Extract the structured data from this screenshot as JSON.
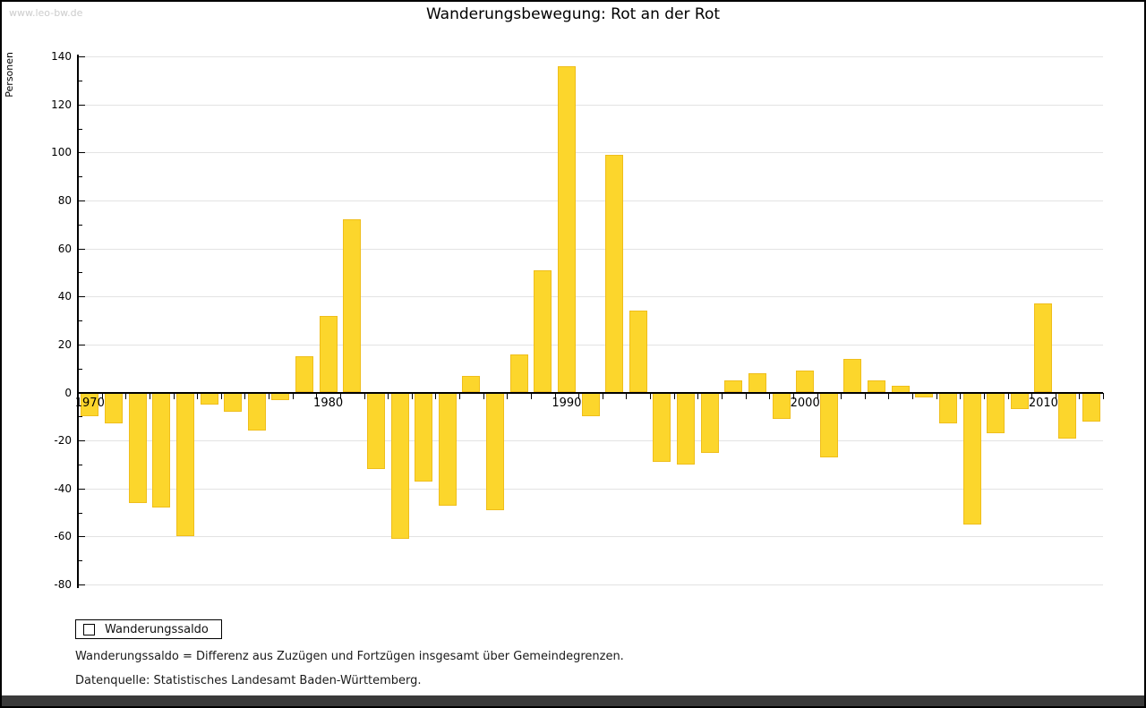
{
  "window": {
    "watermark": "www.leo-bw.de"
  },
  "chart_data": {
    "type": "bar",
    "title": "Wanderungsbewegung: Rot an der Rot",
    "ylabel": "Personen",
    "xlabel": "",
    "ylim": [
      -80,
      140
    ],
    "ytick_step": 20,
    "grid": true,
    "legend_position": "bottom-left",
    "bar_color": "#FCD62C",
    "bar_border_color": "#EFBE1B",
    "categories": [
      1970,
      1971,
      1972,
      1973,
      1974,
      1975,
      1976,
      1977,
      1978,
      1979,
      1980,
      1981,
      1982,
      1983,
      1984,
      1985,
      1986,
      1987,
      1988,
      1989,
      1990,
      1991,
      1992,
      1993,
      1994,
      1995,
      1996,
      1997,
      1998,
      1999,
      2000,
      2001,
      2002,
      2003,
      2004,
      2005,
      2006,
      2007,
      2008,
      2009,
      2010,
      2011,
      2012
    ],
    "values": [
      -10,
      -13,
      -46,
      -48,
      -60,
      -5,
      -8,
      -16,
      -3,
      15,
      32,
      72,
      -32,
      -61,
      -37,
      -47,
      7,
      -49,
      16,
      51,
      136,
      -10,
      99,
      34,
      -29,
      -30,
      -25,
      5,
      8,
      -11,
      9,
      -27,
      14,
      5,
      3,
      -2,
      -13,
      -55,
      -17,
      -7,
      37,
      -19,
      -12
    ],
    "x_axis_labels": [
      "1970",
      "1980",
      "1990",
      "2000",
      "2010"
    ],
    "y_tick_labels": [
      "140",
      "120",
      "100",
      "80",
      "60",
      "40",
      "20",
      "0",
      "-20",
      "-40",
      "-60",
      "-80"
    ]
  },
  "legend": {
    "label": "Wanderungssaldo"
  },
  "footnotes": {
    "line1": "Wanderungssaldo = Differenz aus Zuzügen und Fortzügen insgesamt über Gemeindegrenzen.",
    "line2": "Datenquelle: Statistisches Landesamt Baden-Württemberg."
  }
}
